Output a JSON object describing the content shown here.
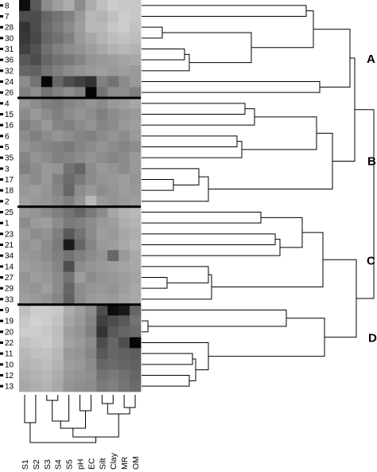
{
  "figure": {
    "row_labels": [
      "8",
      "7",
      "28",
      "30",
      "31",
      "36",
      "32",
      "24",
      "26",
      "4",
      "15",
      "16",
      "6",
      "5",
      "35",
      "3",
      "17",
      "18",
      "2",
      "25",
      "1",
      "23",
      "21",
      "34",
      "14",
      "27",
      "29",
      "33",
      "9",
      "19",
      "20",
      "22",
      "11",
      "10",
      "12",
      "13"
    ],
    "column_labels": [
      "S1",
      "S2",
      "S3",
      "S4",
      "S5",
      "pH",
      "EC",
      "Silt",
      "Clay",
      "MR",
      "OM"
    ],
    "group_labels": [
      "A",
      "B",
      "C",
      "D"
    ],
    "heatmap_values": [
      [
        0.05,
        0.35,
        0.55,
        0.62,
        0.68,
        0.55,
        0.68,
        0.75,
        0.8,
        0.78,
        0.78
      ],
      [
        0.3,
        0.3,
        0.4,
        0.45,
        0.5,
        0.6,
        0.72,
        0.7,
        0.75,
        0.8,
        0.78
      ],
      [
        0.2,
        0.3,
        0.42,
        0.48,
        0.55,
        0.62,
        0.72,
        0.72,
        0.78,
        0.8,
        0.76
      ],
      [
        0.22,
        0.28,
        0.4,
        0.44,
        0.5,
        0.6,
        0.66,
        0.7,
        0.74,
        0.76,
        0.74
      ],
      [
        0.25,
        0.32,
        0.44,
        0.5,
        0.55,
        0.58,
        0.62,
        0.66,
        0.7,
        0.72,
        0.7
      ],
      [
        0.35,
        0.3,
        0.4,
        0.45,
        0.48,
        0.52,
        0.58,
        0.6,
        0.62,
        0.64,
        0.66
      ],
      [
        0.4,
        0.38,
        0.45,
        0.5,
        0.55,
        0.58,
        0.6,
        0.62,
        0.6,
        0.62,
        0.6
      ],
      [
        0.55,
        0.45,
        0.02,
        0.4,
        0.3,
        0.25,
        0.2,
        0.5,
        0.45,
        0.55,
        0.6
      ],
      [
        0.5,
        0.55,
        0.45,
        0.5,
        0.55,
        0.5,
        0.02,
        0.45,
        0.55,
        0.55,
        0.5
      ],
      [
        0.6,
        0.55,
        0.5,
        0.48,
        0.52,
        0.55,
        0.58,
        0.55,
        0.6,
        0.62,
        0.65
      ],
      [
        0.55,
        0.6,
        0.55,
        0.5,
        0.55,
        0.58,
        0.55,
        0.5,
        0.55,
        0.58,
        0.6
      ],
      [
        0.5,
        0.55,
        0.6,
        0.52,
        0.5,
        0.55,
        0.58,
        0.52,
        0.55,
        0.6,
        0.62
      ],
      [
        0.55,
        0.5,
        0.55,
        0.58,
        0.55,
        0.52,
        0.5,
        0.55,
        0.58,
        0.55,
        0.6
      ],
      [
        0.58,
        0.55,
        0.52,
        0.5,
        0.48,
        0.52,
        0.55,
        0.58,
        0.55,
        0.52,
        0.55
      ],
      [
        0.52,
        0.58,
        0.55,
        0.5,
        0.52,
        0.55,
        0.58,
        0.55,
        0.52,
        0.55,
        0.6
      ],
      [
        0.5,
        0.55,
        0.6,
        0.58,
        0.45,
        0.4,
        0.55,
        0.6,
        0.58,
        0.55,
        0.6
      ],
      [
        0.58,
        0.55,
        0.6,
        0.5,
        0.42,
        0.48,
        0.55,
        0.58,
        0.6,
        0.62,
        0.58
      ],
      [
        0.6,
        0.62,
        0.58,
        0.52,
        0.4,
        0.55,
        0.6,
        0.55,
        0.58,
        0.62,
        0.6
      ],
      [
        0.62,
        0.6,
        0.58,
        0.55,
        0.5,
        0.58,
        0.72,
        0.6,
        0.58,
        0.6,
        0.62
      ],
      [
        0.6,
        0.58,
        0.55,
        0.5,
        0.45,
        0.4,
        0.48,
        0.55,
        0.65,
        0.7,
        0.72
      ],
      [
        0.55,
        0.6,
        0.62,
        0.55,
        0.48,
        0.5,
        0.55,
        0.6,
        0.62,
        0.68,
        0.7
      ],
      [
        0.6,
        0.55,
        0.58,
        0.5,
        0.35,
        0.45,
        0.55,
        0.62,
        0.6,
        0.65,
        0.68
      ],
      [
        0.58,
        0.6,
        0.55,
        0.48,
        0.1,
        0.4,
        0.52,
        0.6,
        0.62,
        0.66,
        0.7
      ],
      [
        0.6,
        0.58,
        0.55,
        0.5,
        0.45,
        0.5,
        0.55,
        0.58,
        0.4,
        0.6,
        0.66
      ],
      [
        0.62,
        0.6,
        0.58,
        0.52,
        0.3,
        0.55,
        0.58,
        0.6,
        0.62,
        0.64,
        0.66
      ],
      [
        0.58,
        0.62,
        0.6,
        0.55,
        0.45,
        0.62,
        0.55,
        0.58,
        0.6,
        0.62,
        0.64
      ],
      [
        0.6,
        0.58,
        0.62,
        0.55,
        0.4,
        0.55,
        0.58,
        0.6,
        0.58,
        0.62,
        0.66
      ],
      [
        0.62,
        0.6,
        0.58,
        0.52,
        0.38,
        0.55,
        0.6,
        0.62,
        0.6,
        0.64,
        0.66
      ],
      [
        0.75,
        0.8,
        0.8,
        0.78,
        0.68,
        0.62,
        0.55,
        0.3,
        0.05,
        0.1,
        0.4
      ],
      [
        0.78,
        0.82,
        0.8,
        0.76,
        0.65,
        0.6,
        0.52,
        0.25,
        0.3,
        0.35,
        0.45
      ],
      [
        0.8,
        0.8,
        0.78,
        0.74,
        0.62,
        0.58,
        0.5,
        0.2,
        0.35,
        0.4,
        0.42
      ],
      [
        0.76,
        0.78,
        0.8,
        0.75,
        0.64,
        0.6,
        0.55,
        0.3,
        0.4,
        0.3,
        0.02
      ],
      [
        0.72,
        0.75,
        0.76,
        0.72,
        0.6,
        0.58,
        0.52,
        0.35,
        0.4,
        0.38,
        0.36
      ],
      [
        0.7,
        0.72,
        0.74,
        0.7,
        0.62,
        0.6,
        0.55,
        0.4,
        0.42,
        0.4,
        0.38
      ],
      [
        0.68,
        0.7,
        0.72,
        0.68,
        0.6,
        0.58,
        0.56,
        0.45,
        0.48,
        0.44,
        0.4
      ],
      [
        0.66,
        0.68,
        0.7,
        0.66,
        0.58,
        0.56,
        0.55,
        0.48,
        0.5,
        0.46,
        0.42
      ]
    ]
  }
}
